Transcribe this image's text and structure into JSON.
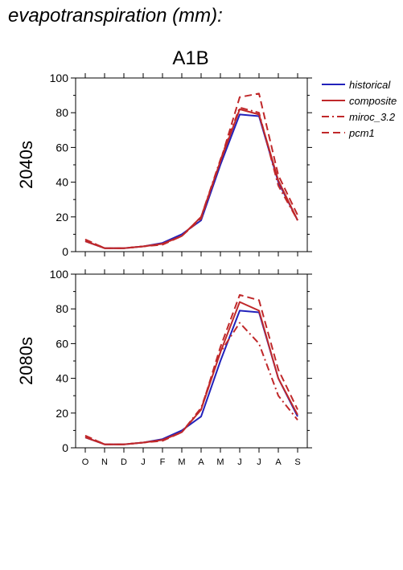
{
  "heading": "evapotranspiration (mm):",
  "scenario": "A1B",
  "legend": [
    {
      "name": "historical",
      "color": "#2222bb",
      "dash": "solid"
    },
    {
      "name": "composite",
      "color": "#c0282a",
      "dash": "solid"
    },
    {
      "name": "miroc_3.2",
      "color": "#c0282a",
      "dash": "dashdot"
    },
    {
      "name": "pcm1",
      "color": "#c0282a",
      "dash": "dash"
    }
  ],
  "chart_data": [
    {
      "type": "line",
      "title": "A1B",
      "ylabel": "2040s",
      "categories": [
        "O",
        "N",
        "D",
        "J",
        "F",
        "M",
        "A",
        "M",
        "J",
        "J",
        "A",
        "S"
      ],
      "ylim": [
        0,
        100
      ],
      "yticks": [
        0,
        20,
        40,
        60,
        80,
        100
      ],
      "series": [
        {
          "name": "historical",
          "values": [
            6,
            2,
            2,
            3,
            5,
            10,
            18,
            50,
            79,
            78,
            40,
            18
          ]
        },
        {
          "name": "composite",
          "values": [
            6,
            2,
            2,
            3,
            4.5,
            9,
            20,
            52,
            82,
            79,
            41,
            18
          ]
        },
        {
          "name": "miroc_3.2",
          "values": [
            7,
            2,
            2,
            3,
            4.5,
            9,
            20,
            53,
            83,
            80,
            38,
            18
          ]
        },
        {
          "name": "pcm1",
          "values": [
            7,
            2,
            2,
            3,
            4,
            9,
            19,
            52,
            89,
            91,
            44,
            21
          ]
        }
      ]
    },
    {
      "type": "line",
      "ylabel": "2080s",
      "categories": [
        "O",
        "N",
        "D",
        "J",
        "F",
        "M",
        "A",
        "M",
        "J",
        "J",
        "A",
        "S"
      ],
      "ylim": [
        0,
        100
      ],
      "yticks": [
        0,
        20,
        40,
        60,
        80,
        100
      ],
      "series": [
        {
          "name": "historical",
          "values": [
            6,
            2,
            2,
            3,
            5,
            10,
            18,
            50,
            79,
            78,
            40,
            18
          ]
        },
        {
          "name": "composite",
          "values": [
            6,
            2,
            2,
            3,
            4.5,
            9,
            22,
            55,
            84,
            79,
            40,
            19
          ]
        },
        {
          "name": "miroc_3.2",
          "values": [
            7,
            2,
            2,
            3,
            4.5,
            9,
            23,
            55,
            72,
            60,
            30,
            16
          ]
        },
        {
          "name": "pcm1",
          "values": [
            7,
            2,
            2,
            3,
            4,
            9,
            22,
            58,
            88,
            85,
            45,
            22
          ]
        }
      ]
    }
  ]
}
